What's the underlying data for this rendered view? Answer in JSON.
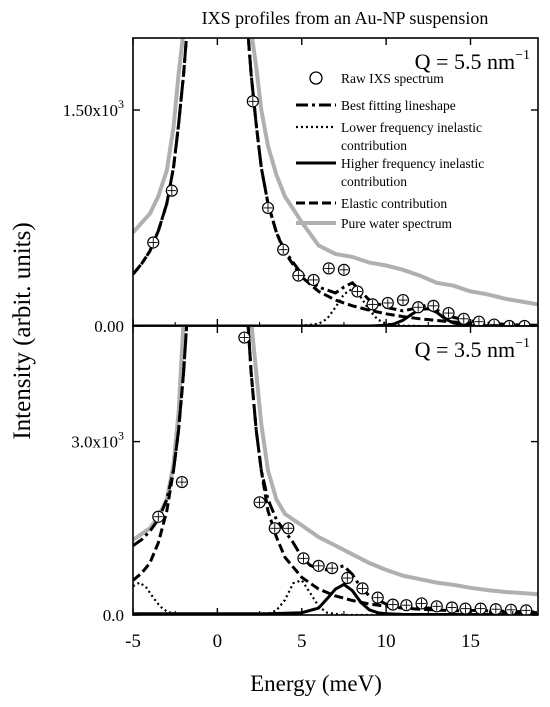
{
  "title": "IXS profiles from an Au-NP suspension",
  "ylabel": "Intensity (arbit. units)",
  "xlabel": "Energy (meV)",
  "legend": [
    {
      "label": "Raw IXS spectrum",
      "style": "marker"
    },
    {
      "label": "Best  fitting lineshape",
      "style": "dashdot"
    },
    {
      "label": "Lower frequency inelastic",
      "label2": "contribution",
      "style": "dotted"
    },
    {
      "label": "Higher frequency inelastic",
      "label2": "contribution",
      "style": "solid"
    },
    {
      "label": "Elastic contribution",
      "style": "dashed"
    },
    {
      "label": "Pure water spectrum",
      "style": "gray"
    }
  ],
  "colors": {
    "data": "#000000",
    "water": "#b0b0b0",
    "axis": "#000000"
  },
  "chart_data": [
    {
      "type": "line",
      "panel": "top",
      "q_label": "Q = 5.5 nm",
      "q_superscript": "−1",
      "xlim": [
        -5,
        19
      ],
      "ylim": [
        0,
        2000
      ],
      "xticks": [
        -5,
        0,
        5,
        10,
        15
      ],
      "xtick_labels": [
        "-5",
        "0",
        "5",
        "10",
        "15"
      ],
      "yticks": [
        0,
        1500
      ],
      "ytick_labels": [
        "0.00",
        "1.50x10"
      ],
      "ytick_sup": [
        "",
        "3"
      ],
      "raw": {
        "x": [
          -3.8,
          -2.7,
          2.1,
          3.0,
          3.9,
          4.8,
          5.7,
          6.6,
          7.5,
          8.3,
          9.2,
          10.1,
          11.0,
          11.9,
          12.8,
          13.7,
          14.6,
          15.5,
          16.4,
          17.3,
          18.2
        ],
        "y": [
          580,
          940,
          1560,
          820,
          530,
          350,
          320,
          400,
          390,
          240,
          150,
          160,
          180,
          130,
          140,
          90,
          50,
          30,
          10,
          0,
          0
        ]
      },
      "series": [
        {
          "name": "Best  fitting lineshape",
          "style": "dashdot",
          "x": [
            -5,
            -4.5,
            -4,
            -3.5,
            -3,
            -2.6,
            -2.3,
            -2.0,
            -1.8,
            1.8,
            2.0,
            2.3,
            2.6,
            3,
            3.5,
            4,
            5,
            6,
            7,
            7.5,
            8,
            8.5,
            9,
            10,
            11,
            12,
            12.5,
            13,
            14,
            15,
            16,
            17,
            18,
            19
          ],
          "y": [
            360,
            430,
            520,
            660,
            850,
            1100,
            1400,
            1750,
            2050,
            2050,
            1750,
            1400,
            1100,
            850,
            650,
            520,
            360,
            270,
            230,
            270,
            300,
            240,
            180,
            130,
            105,
            130,
            150,
            110,
            60,
            35,
            20,
            12,
            6,
            3
          ]
        },
        {
          "name": "Lower frequency inelastic contribution",
          "style": "dotted",
          "x": [
            4,
            5,
            6,
            6.5,
            7,
            7.5,
            8,
            8.5,
            9,
            9.5,
            10,
            11,
            12
          ],
          "y": [
            0,
            2,
            15,
            50,
            130,
            220,
            260,
            200,
            110,
            45,
            15,
            2,
            0
          ]
        },
        {
          "name": "Higher frequency inelastic contribution",
          "style": "solid",
          "x": [
            -5,
            9,
            10,
            10.5,
            11,
            11.5,
            12,
            12.5,
            13,
            13.5,
            14,
            15,
            19
          ],
          "y": [
            0,
            0,
            5,
            15,
            40,
            80,
            115,
            120,
            95,
            50,
            20,
            3,
            0
          ]
        },
        {
          "name": "Elastic contribution",
          "style": "dashed",
          "x": [
            -5,
            -4.5,
            -4,
            -3.5,
            -3,
            -2.6,
            -2.3,
            -2.0,
            -1.8,
            1.8,
            2.0,
            2.3,
            2.6,
            3,
            3.5,
            4,
            5,
            6,
            7,
            8,
            9,
            10,
            11,
            12,
            13,
            14,
            15,
            17,
            19
          ],
          "y": [
            360,
            430,
            520,
            660,
            850,
            1100,
            1400,
            1750,
            2050,
            2050,
            1750,
            1400,
            1100,
            850,
            650,
            510,
            340,
            240,
            180,
            140,
            110,
            85,
            65,
            50,
            38,
            28,
            20,
            10,
            5
          ]
        },
        {
          "name": "Pure water spectrum",
          "style": "gray",
          "x": [
            -5,
            -4,
            -3.5,
            -3,
            -2.6,
            -2.3,
            -2.0,
            2.0,
            2.3,
            2.6,
            3,
            3.5,
            4,
            5,
            6,
            7,
            8,
            9,
            10,
            11,
            12,
            13,
            14,
            15,
            16,
            17,
            18,
            19
          ],
          "y": [
            650,
            780,
            900,
            1080,
            1380,
            1750,
            2050,
            2050,
            1800,
            1500,
            1250,
            1050,
            900,
            720,
            560,
            500,
            480,
            440,
            420,
            390,
            350,
            300,
            280,
            240,
            220,
            190,
            170,
            150
          ]
        }
      ]
    },
    {
      "type": "line",
      "panel": "bottom",
      "q_label": "Q = 3.5 nm",
      "q_superscript": "−1",
      "xlim": [
        -5,
        19
      ],
      "ylim": [
        0,
        5000
      ],
      "xticks": [
        -5,
        0,
        5,
        10,
        15
      ],
      "xtick_labels": [
        "-5",
        "0",
        "5",
        "10",
        "15"
      ],
      "yticks": [
        0,
        3000
      ],
      "ytick_labels": [
        "0.0",
        "3.0x10"
      ],
      "ytick_sup": [
        "",
        "3"
      ],
      "raw": {
        "x": [
          -3.5,
          -2.1,
          1.6,
          2.5,
          3.4,
          4.2,
          5.1,
          6.0,
          6.8,
          7.7,
          8.6,
          9.5,
          10.4,
          11.2,
          12.1,
          13.0,
          13.9,
          14.7,
          15.6,
          16.5,
          17.4,
          18.3
        ],
        "y": [
          1700,
          2300,
          4800,
          1950,
          1500,
          1500,
          980,
          850,
          810,
          640,
          460,
          300,
          180,
          170,
          200,
          150,
          130,
          110,
          110,
          100,
          90,
          80
        ]
      },
      "series": [
        {
          "name": "Best  fitting lineshape",
          "style": "dashdot",
          "x": [
            -5,
            -4.5,
            -4,
            -3.5,
            -3,
            -2.6,
            -2.3,
            -2.0,
            -1.8,
            1.8,
            2.0,
            2.3,
            2.6,
            3,
            3.5,
            4,
            4.5,
            5,
            5.5,
            6,
            6.5,
            7,
            7.5,
            8,
            8.5,
            9,
            10,
            11,
            12,
            13,
            14,
            15,
            17,
            19
          ],
          "y": [
            1200,
            1300,
            1450,
            1650,
            2000,
            2500,
            3200,
            4200,
            5100,
            5100,
            4200,
            3200,
            2500,
            2000,
            1650,
            1450,
            1250,
            1000,
            860,
            800,
            780,
            820,
            850,
            700,
            480,
            330,
            190,
            150,
            130,
            110,
            95,
            80,
            65,
            50
          ]
        },
        {
          "name": "Lower frequency inelastic contribution",
          "style": "dotted",
          "x": [
            -5,
            -4.6,
            -4.2,
            -3.8,
            -3.4,
            -3.0,
            -2.5,
            -1.5,
            2.5,
            3.0,
            3.5,
            4.0,
            4.5,
            5.0,
            5.5,
            6.0,
            6.5,
            7.5,
            19
          ],
          "y": [
            500,
            560,
            470,
            300,
            150,
            60,
            15,
            0,
            0,
            20,
            80,
            260,
            550,
            600,
            380,
            150,
            40,
            0,
            0
          ]
        },
        {
          "name": "Higher frequency inelastic contribution",
          "style": "solid",
          "x": [
            -5,
            3,
            5,
            6,
            6.5,
            7,
            7.5,
            8,
            8.5,
            9,
            9.5,
            10,
            11,
            19
          ],
          "y": [
            20,
            20,
            40,
            120,
            280,
            450,
            530,
            420,
            220,
            90,
            40,
            20,
            10,
            5
          ]
        },
        {
          "name": "Elastic contribution",
          "style": "dashed",
          "x": [
            -5,
            -4.5,
            -4,
            -3.5,
            -3,
            -2.6,
            -2.3,
            -2.0,
            -1.8,
            1.8,
            2.0,
            2.3,
            2.6,
            3,
            3.5,
            4,
            5,
            6,
            7,
            8,
            9,
            10,
            11,
            12,
            13,
            14,
            15,
            17,
            19
          ],
          "y": [
            600,
            720,
            900,
            1250,
            1800,
            2500,
            3200,
            4200,
            5100,
            5100,
            4200,
            3200,
            2500,
            1800,
            1350,
            1000,
            650,
            450,
            330,
            250,
            190,
            150,
            120,
            100,
            85,
            75,
            65,
            50,
            40
          ]
        },
        {
          "name": "Pure water spectrum",
          "style": "gray",
          "x": [
            -5,
            -4.5,
            -4,
            -3.5,
            -3,
            -2.6,
            -2.3,
            -2.0,
            2.0,
            2.3,
            2.6,
            3,
            3.5,
            4,
            4.5,
            5,
            6,
            7,
            8,
            9,
            10,
            11,
            12,
            13,
            14,
            15,
            16,
            17,
            18,
            19
          ],
          "y": [
            1300,
            1400,
            1500,
            1700,
            2000,
            2600,
            3500,
            5100,
            5100,
            4200,
            3300,
            2500,
            2000,
            1750,
            1650,
            1550,
            1350,
            1200,
            1050,
            900,
            780,
            680,
            620,
            560,
            520,
            470,
            430,
            400,
            380,
            360
          ]
        }
      ]
    }
  ]
}
